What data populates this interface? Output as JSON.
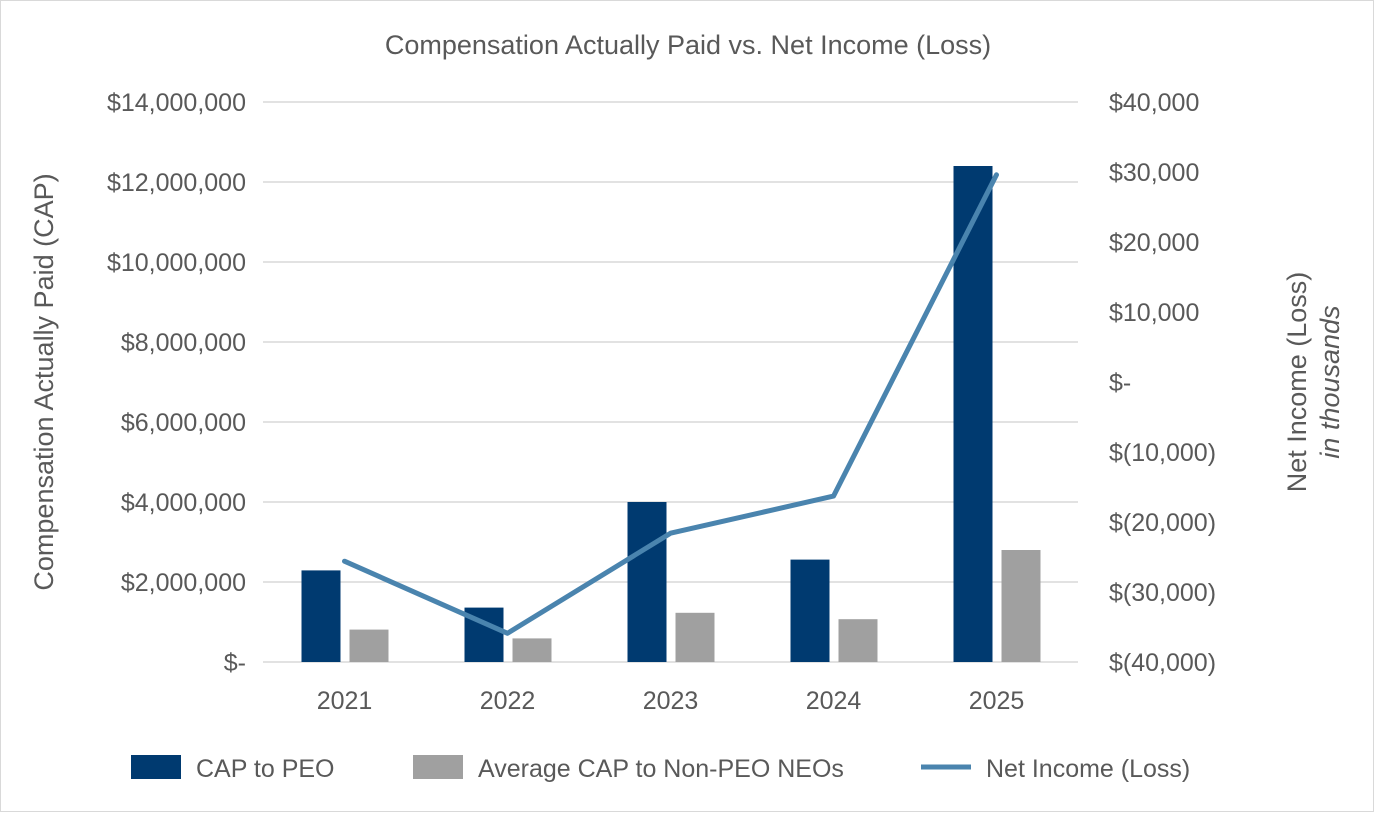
{
  "chart_data": {
    "type": "bar+line",
    "title": "Compensation Actually Paid vs. Net Income (Loss)",
    "categories": [
      "2021",
      "2022",
      "2023",
      "2024",
      "2025"
    ],
    "ylabel": "Compensation Actually Paid (CAP)",
    "y2label": "Net Income (Loss)",
    "y2label_sub": "in thousands",
    "ylim": [
      0,
      14000000
    ],
    "y2lim": [
      -40000,
      40000
    ],
    "yticks": [
      "$-",
      "$2,000,000",
      "$4,000,000",
      "$6,000,000",
      "$8,000,000",
      "$10,000,000",
      "$12,000,000",
      "$14,000,000"
    ],
    "y2ticks": [
      "$(40,000)",
      "$(30,000)",
      "$(20,000)",
      "$(10,000)",
      "$-",
      "$10,000",
      "$20,000",
      "$30,000",
      "$40,000"
    ],
    "grid": true,
    "legend_position": "bottom",
    "series": [
      {
        "name": "CAP to PEO",
        "type": "bar",
        "axis": "left",
        "color": "#003A70",
        "values": [
          2290000,
          1360000,
          4000000,
          2560000,
          12400000
        ]
      },
      {
        "name": "Average CAP to Non-PEO NEOs",
        "type": "bar",
        "axis": "left",
        "color": "#A0A0A0",
        "values": [
          810000,
          590000,
          1230000,
          1070000,
          2800000
        ]
      },
      {
        "name": "Net Income (Loss)",
        "type": "line",
        "axis": "right",
        "color": "#4A84AE",
        "values": [
          -25600,
          -35900,
          -21600,
          -16300,
          29600
        ]
      }
    ]
  }
}
